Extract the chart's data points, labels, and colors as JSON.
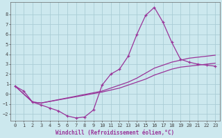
{
  "xlabel": "Windchill (Refroidissement éolien,°C)",
  "bg_color": "#cce8ee",
  "grid_color": "#aacdd6",
  "line_color": "#993399",
  "xlim": [
    -0.5,
    23.5
  ],
  "ylim": [
    -2.7,
    9.2
  ],
  "xticks": [
    0,
    1,
    2,
    3,
    4,
    5,
    6,
    7,
    8,
    9,
    10,
    11,
    12,
    13,
    14,
    15,
    16,
    17,
    18,
    19,
    20,
    21,
    22,
    23
  ],
  "yticks": [
    -2,
    -1,
    0,
    1,
    2,
    3,
    4,
    5,
    6,
    7,
    8
  ],
  "curve1_x": [
    0,
    1,
    2,
    3,
    4,
    5,
    6,
    7,
    8,
    9,
    10,
    11,
    12,
    13,
    14,
    15,
    16,
    17,
    18,
    19,
    20,
    21,
    22,
    23
  ],
  "curve1_y": [
    0.8,
    0.3,
    -0.8,
    -1.1,
    -1.4,
    -1.7,
    -2.2,
    -2.4,
    -2.3,
    -1.6,
    0.9,
    2.0,
    2.5,
    3.8,
    6.0,
    7.9,
    8.7,
    7.2,
    5.2,
    3.5,
    3.2,
    3.0,
    2.9,
    2.8
  ],
  "curve2_x": [
    0,
    2,
    3,
    10,
    11,
    12,
    13,
    14,
    15,
    16,
    17,
    18,
    19,
    20,
    21,
    22,
    23
  ],
  "curve2_y": [
    0.8,
    -0.8,
    -0.9,
    0.3,
    0.6,
    0.9,
    1.2,
    1.6,
    2.1,
    2.6,
    2.9,
    3.2,
    3.4,
    3.6,
    3.7,
    3.8,
    3.9
  ],
  "curve3_x": [
    0,
    2,
    3,
    10,
    11,
    12,
    13,
    14,
    15,
    16,
    17,
    18,
    19,
    20,
    21,
    22,
    23
  ],
  "curve3_y": [
    0.8,
    -0.8,
    -0.9,
    0.2,
    0.4,
    0.6,
    0.9,
    1.2,
    1.5,
    1.9,
    2.2,
    2.5,
    2.7,
    2.8,
    2.9,
    3.0,
    3.1
  ],
  "marker": "+"
}
